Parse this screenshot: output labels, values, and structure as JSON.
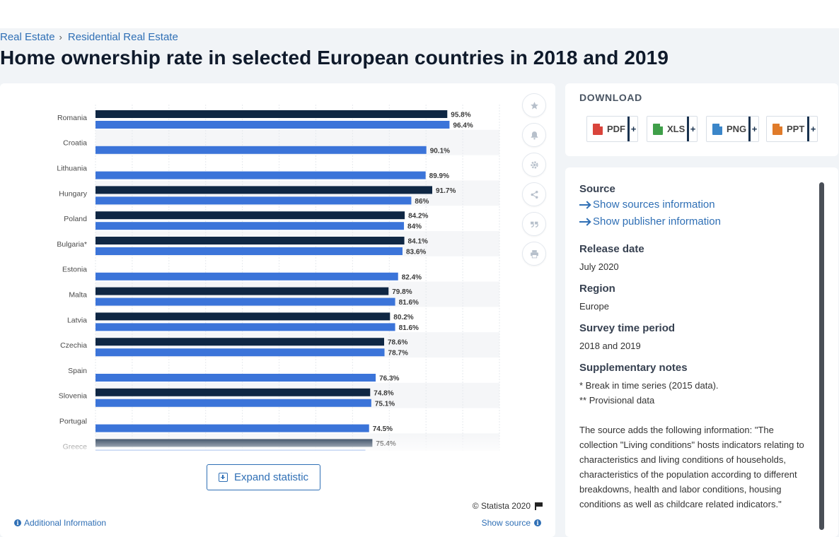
{
  "breadcrumb": {
    "items": [
      "Real Estate",
      "Residential Real Estate"
    ],
    "separator": "›"
  },
  "page_title": "Home ownership rate in selected European countries in 2018 and 2019",
  "chart": {
    "expand_label": "Expand statistic",
    "copyright": "© Statista 2020",
    "additional_info": "Additional Information",
    "show_source": "Show source",
    "tool_icons": [
      "star-icon",
      "bell-icon",
      "gear-icon",
      "share-icon",
      "quote-icon",
      "print-icon"
    ]
  },
  "chart_data": {
    "type": "bar",
    "orientation": "horizontal",
    "categories": [
      "Romania",
      "Croatia",
      "Lithuania",
      "Hungary",
      "Poland",
      "Bulgaria*",
      "Estonia",
      "Malta",
      "Latvia",
      "Czechia",
      "Spain",
      "Slovenia",
      "Portugal",
      "Greece"
    ],
    "series": [
      {
        "values": [
          95.8,
          null,
          null,
          91.7,
          84.2,
          84.1,
          null,
          79.8,
          80.2,
          78.6,
          null,
          74.8,
          null,
          75.4
        ],
        "labels": [
          "95.8%",
          "",
          "",
          "91.7%",
          "84.2%",
          "84.1%",
          "",
          "79.8%",
          "80.2%",
          "78.6%",
          "",
          "74.8%",
          "",
          "75.4%"
        ],
        "color": "#0f2744"
      },
      {
        "values": [
          96.4,
          90.1,
          89.9,
          86,
          84,
          83.6,
          82.4,
          81.6,
          81.6,
          78.7,
          76.3,
          75.1,
          74.5,
          73.5
        ],
        "labels": [
          "96.4%",
          "90.1%",
          "89.9%",
          "86%",
          "84%",
          "83.6%",
          "82.4%",
          "81.6%",
          "81.6%",
          "78.7%",
          "76.3%",
          "75.1%",
          "74.5%",
          ""
        ],
        "color": "#3b74d9"
      }
    ],
    "xlim": [
      0,
      110
    ],
    "grid": true,
    "title": "",
    "xlabel": "",
    "ylabel": ""
  },
  "download": {
    "title": "DOWNLOAD",
    "buttons": [
      {
        "label": "PDF",
        "color": "#d9443b"
      },
      {
        "label": "XLS",
        "color": "#3f9f49"
      },
      {
        "label": "PNG",
        "color": "#3b86c9"
      },
      {
        "label": "PPT",
        "color": "#e07b2a"
      }
    ],
    "plus": "+"
  },
  "info": {
    "source_title": "Source",
    "source_links": [
      "Show sources information",
      "Show publisher information"
    ],
    "release_title": "Release date",
    "release_value": "July 2020",
    "region_title": "Region",
    "region_value": "Europe",
    "survey_title": "Survey time period",
    "survey_value": "2018 and 2019",
    "notes_title": "Supplementary notes",
    "notes_lines": [
      "* Break in time series (2015 data).",
      "** Provisional data"
    ],
    "notes_paragraph": "The source adds the following information: \"The collection \"Living conditions\" hosts indicators relating to characteristics and living conditions of households, characteristics of the population according to different breakdowns, health and labor conditions, housing conditions as well as childcare related indicators.\""
  }
}
